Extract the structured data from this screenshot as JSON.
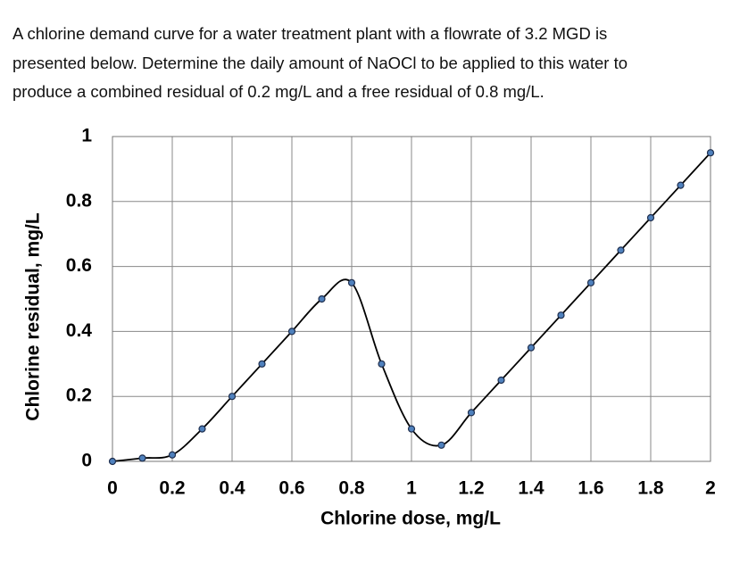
{
  "problem": {
    "lines": [
      "A chlorine demand curve for a water treatment plant with a flowrate of 3.2 MGD is",
      "presented below. Determine the daily amount of NaOCl to be applied to this water to",
      "produce a combined residual of 0.2 mg/L and a free residual of 0.8 mg/L."
    ]
  },
  "chart_data": {
    "type": "line",
    "x_label": "Chlorine dose, mg/L",
    "y_label": "Chlorine residual, mg/L",
    "x": [
      0,
      0.1,
      0.2,
      0.3,
      0.4,
      0.5,
      0.6,
      0.7,
      0.8,
      0.9,
      1,
      1.1,
      1.2,
      1.3,
      1.4,
      1.5,
      1.6,
      1.7,
      1.8,
      1.9,
      2
    ],
    "series": [
      {
        "color": "#4f81bd",
        "values": [
          0,
          0.01,
          0.02,
          0.1,
          0.2,
          0.3,
          0.4,
          0.5,
          0.55,
          0.3,
          0.1,
          0.05,
          0.15,
          0.25,
          0.35,
          0.45,
          0.55,
          0.65,
          0.75,
          0.85,
          0.95
        ]
      }
    ],
    "xlim": [
      0,
      2
    ],
    "xticks": [
      0,
      0.2,
      0.4,
      0.6,
      0.8,
      1,
      1.2,
      1.4,
      1.6,
      1.8,
      2
    ],
    "ylim": [
      0,
      1
    ],
    "yticks": [
      0,
      0.2,
      0.4,
      0.6,
      0.8,
      1
    ],
    "grid": true,
    "smooth": true
  }
}
